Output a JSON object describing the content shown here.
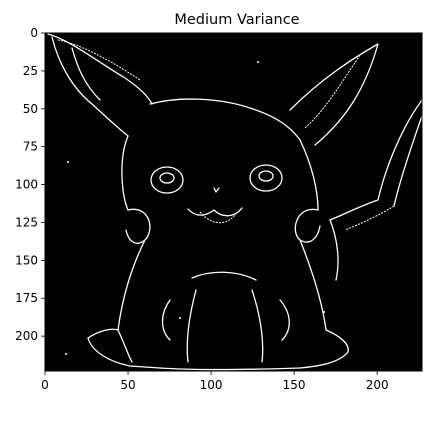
{
  "chart_data": {
    "type": "heatmap",
    "title": "Medium Variance",
    "xlabel": "",
    "ylabel": "",
    "xlim": [
      0,
      227
    ],
    "ylim": [
      223,
      0
    ],
    "x_ticks": [
      0,
      50,
      100,
      150,
      200
    ],
    "y_ticks": [
      0,
      25,
      50,
      75,
      100,
      125,
      150,
      175,
      200
    ],
    "grid": false,
    "colormap": "gray",
    "image_description": "binary edge map (white edges on black) of a cartoon character outline"
  },
  "colors": {
    "background": "#000000",
    "edge": "#ffffff",
    "page": "#ffffff",
    "text": "#000000"
  }
}
